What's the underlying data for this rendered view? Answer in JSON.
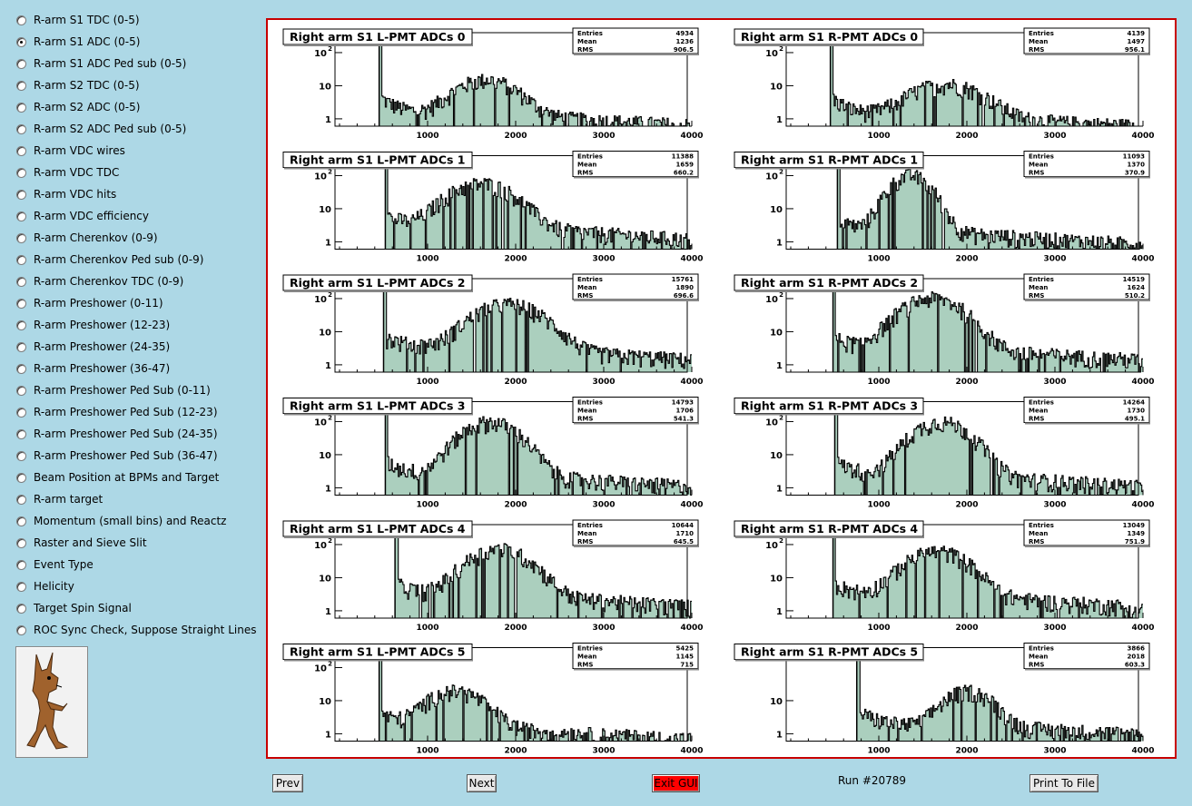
{
  "menu": {
    "items": [
      {
        "label": "R-arm S1 TDC (0-5)",
        "selected": false
      },
      {
        "label": "R-arm S1 ADC (0-5)",
        "selected": true
      },
      {
        "label": "R-arm S1 ADC Ped sub (0-5)",
        "selected": false
      },
      {
        "label": "R-arm S2 TDC (0-5)",
        "selected": false
      },
      {
        "label": "R-arm S2 ADC (0-5)",
        "selected": false
      },
      {
        "label": "R-arm S2 ADC Ped sub (0-5)",
        "selected": false
      },
      {
        "label": "R-arm VDC wires",
        "selected": false
      },
      {
        "label": "R-arm VDC TDC",
        "selected": false
      },
      {
        "label": "R-arm VDC hits",
        "selected": false
      },
      {
        "label": "R-arm VDC efficiency",
        "selected": false
      },
      {
        "label": "R-arm Cherenkov (0-9)",
        "selected": false
      },
      {
        "label": "R-arm Cherenkov Ped sub (0-9)",
        "selected": false
      },
      {
        "label": "R-arm Cherenkov TDC (0-9)",
        "selected": false
      },
      {
        "label": "R-arm Preshower (0-11)",
        "selected": false
      },
      {
        "label": "R-arm Preshower (12-23)",
        "selected": false
      },
      {
        "label": "R-arm Preshower (24-35)",
        "selected": false
      },
      {
        "label": "R-arm Preshower (36-47)",
        "selected": false
      },
      {
        "label": "R-arm Preshower Ped Sub (0-11)",
        "selected": false
      },
      {
        "label": "R-arm Preshower Ped Sub (12-23)",
        "selected": false
      },
      {
        "label": "R-arm Preshower Ped Sub (24-35)",
        "selected": false
      },
      {
        "label": "R-arm Preshower Ped Sub (36-47)",
        "selected": false
      },
      {
        "label": "Beam Position at BPMs and Target",
        "selected": false
      },
      {
        "label": "R-arm target",
        "selected": false
      },
      {
        "label": "Momentum (small bins) and Reactz",
        "selected": false
      },
      {
        "label": "Raster and Sieve Slit",
        "selected": false
      },
      {
        "label": "Event Type",
        "selected": false
      },
      {
        "label": "Helicity",
        "selected": false
      },
      {
        "label": "Target Spin Signal",
        "selected": false
      },
      {
        "label": "ROC Sync Check, Suppose Straight Lines",
        "selected": false
      }
    ]
  },
  "buttons": {
    "prev": "Prev",
    "next": "Next",
    "exit": "Exit GUI",
    "print": "Print To File"
  },
  "run_label": "Run #20789",
  "colors": {
    "background": "#add8e6",
    "canvas_border": "#c80000",
    "hist_fill": "#8fbfa8",
    "hist_line": "#000000",
    "exit_button": "#ff0000"
  },
  "chart_data": [
    {
      "type": "histogram",
      "title": "Right arm S1 L-PMT ADCs 0",
      "stats": {
        "Entries": "4934",
        "Mean": "1236",
        "RMS": "906.5"
      },
      "xlim": [
        0,
        4000
      ],
      "xticks": [
        "1000",
        "2000",
        "3000",
        "4000"
      ],
      "ylog": true,
      "yticks": [
        "1",
        "10",
        "10^2"
      ],
      "pedestal": 450,
      "peak": {
        "center": 1650,
        "height": 14,
        "width": 380
      },
      "tail": 1.2,
      "noise_floor": 0.8
    },
    {
      "type": "histogram",
      "title": "Right arm S1 R-PMT ADCs 0",
      "stats": {
        "Entries": "4139",
        "Mean": "1497",
        "RMS": "956.1"
      },
      "xlim": [
        0,
        4000
      ],
      "xticks": [
        "1000",
        "2000",
        "3000",
        "4000"
      ],
      "ylog": true,
      "yticks": [
        "1",
        "10",
        "10^2"
      ],
      "pedestal": 450,
      "peak": {
        "center": 1750,
        "height": 10,
        "width": 450
      },
      "tail": 1.0,
      "noise_floor": 0.8
    },
    {
      "type": "histogram",
      "title": "Right arm S1 L-PMT ADCs 1",
      "stats": {
        "Entries": "11388",
        "Mean": "1659",
        "RMS": "660.2"
      },
      "xlim": [
        0,
        4000
      ],
      "xticks": [
        "1000",
        "2000",
        "3000",
        "4000"
      ],
      "ylog": true,
      "yticks": [
        "1",
        "10",
        "10^2"
      ],
      "pedestal": 520,
      "peak": {
        "center": 1600,
        "height": 55,
        "width": 400
      },
      "tail": 3.0,
      "noise_floor": 1.0
    },
    {
      "type": "histogram",
      "title": "Right arm S1 R-PMT ADCs 1",
      "stats": {
        "Entries": "11093",
        "Mean": "1370",
        "RMS": "370.9"
      },
      "xlim": [
        0,
        4000
      ],
      "xticks": [
        "1000",
        "2000",
        "3000",
        "4000"
      ],
      "ylog": true,
      "yticks": [
        "1",
        "10",
        "10^2"
      ],
      "pedestal": 530,
      "peak": {
        "center": 1350,
        "height": 100,
        "width": 250
      },
      "tail": 2.0,
      "noise_floor": 1.0
    },
    {
      "type": "histogram",
      "title": "Right arm S1 L-PMT ADCs 2",
      "stats": {
        "Entries": "15761",
        "Mean": "1890",
        "RMS": "696.6"
      },
      "xlim": [
        0,
        4000
      ],
      "xticks": [
        "1000",
        "2000",
        "3000",
        "4000"
      ],
      "ylog": true,
      "yticks": [
        "1",
        "10",
        "10^2"
      ],
      "pedestal": 500,
      "peak": {
        "center": 1900,
        "height": 65,
        "width": 420
      },
      "tail": 3.0,
      "noise_floor": 1.2
    },
    {
      "type": "histogram",
      "title": "Right arm S1 R-PMT ADCs 2",
      "stats": {
        "Entries": "14519",
        "Mean": "1624",
        "RMS": "510.2"
      },
      "xlim": [
        0,
        4000
      ],
      "xticks": [
        "1000",
        "2000",
        "3000",
        "4000"
      ],
      "ylog": true,
      "yticks": [
        "1",
        "10",
        "10^2"
      ],
      "pedestal": 480,
      "peak": {
        "center": 1600,
        "height": 100,
        "width": 380
      },
      "tail": 3.0,
      "noise_floor": 1.5
    },
    {
      "type": "histogram",
      "title": "Right arm S1 L-PMT ADCs 3",
      "stats": {
        "Entries": "14793",
        "Mean": "1706",
        "RMS": "541.3"
      },
      "xlim": [
        0,
        4000
      ],
      "xticks": [
        "1000",
        "2000",
        "3000",
        "4000"
      ],
      "ylog": true,
      "yticks": [
        "1",
        "10",
        "10^2"
      ],
      "pedestal": 520,
      "peak": {
        "center": 1700,
        "height": 95,
        "width": 350
      },
      "tail": 2.5,
      "noise_floor": 1.0
    },
    {
      "type": "histogram",
      "title": "Right arm S1 R-PMT ADCs 3",
      "stats": {
        "Entries": "14264",
        "Mean": "1730",
        "RMS": "495.1"
      },
      "xlim": [
        0,
        4000
      ],
      "xticks": [
        "1000",
        "2000",
        "3000",
        "4000"
      ],
      "ylog": true,
      "yticks": [
        "1",
        "10",
        "10^2"
      ],
      "pedestal": 500,
      "peak": {
        "center": 1700,
        "height": 95,
        "width": 350
      },
      "tail": 2.5,
      "noise_floor": 1.0
    },
    {
      "type": "histogram",
      "title": "Right arm S1 L-PMT ADCs 4",
      "stats": {
        "Entries": "10644",
        "Mean": "1710",
        "RMS": "645.5"
      },
      "xlim": [
        0,
        4000
      ],
      "xticks": [
        "1000",
        "2000",
        "3000",
        "4000"
      ],
      "ylog": true,
      "yticks": [
        "1",
        "10",
        "10^2"
      ],
      "pedestal": 630,
      "peak": {
        "center": 1800,
        "height": 70,
        "width": 380
      },
      "tail": 3.0,
      "noise_floor": 1.2
    },
    {
      "type": "histogram",
      "title": "Right arm S1 R-PMT ADCs 4",
      "stats": {
        "Entries": "13049",
        "Mean": "1349",
        "RMS": "751.9"
      },
      "xlim": [
        0,
        4000
      ],
      "xticks": [
        "1000",
        "2000",
        "3000",
        "4000"
      ],
      "ylog": true,
      "yticks": [
        "1",
        "10",
        "10^2"
      ],
      "pedestal": 480,
      "peak": {
        "center": 1650,
        "height": 60,
        "width": 380
      },
      "tail": 3.0,
      "noise_floor": 1.2
    },
    {
      "type": "histogram",
      "title": "Right arm S1 L-PMT ADCs 5",
      "stats": {
        "Entries": "5425",
        "Mean": "1145",
        "RMS": "715"
      },
      "xlim": [
        0,
        4000
      ],
      "xticks": [
        "1000",
        "2000",
        "3000",
        "4000"
      ],
      "ylog": true,
      "yticks": [
        "1",
        "10",
        "10^2"
      ],
      "pedestal": 450,
      "peak": {
        "center": 1300,
        "height": 18,
        "width": 350
      },
      "tail": 1.5,
      "noise_floor": 0.9
    },
    {
      "type": "histogram",
      "title": "Right arm S1 R-PMT ADCs 5",
      "stats": {
        "Entries": "3866",
        "Mean": "2018",
        "RMS": "603.3"
      },
      "xlim": [
        0,
        4000
      ],
      "xticks": [
        "1000",
        "2000",
        "3000",
        "4000"
      ],
      "ylog": true,
      "yticks": [
        "1",
        "10"
      ],
      "pedestal": 750,
      "peak": {
        "center": 2000,
        "height": 18,
        "width": 300
      },
      "tail": 1.5,
      "noise_floor": 1.2
    }
  ]
}
